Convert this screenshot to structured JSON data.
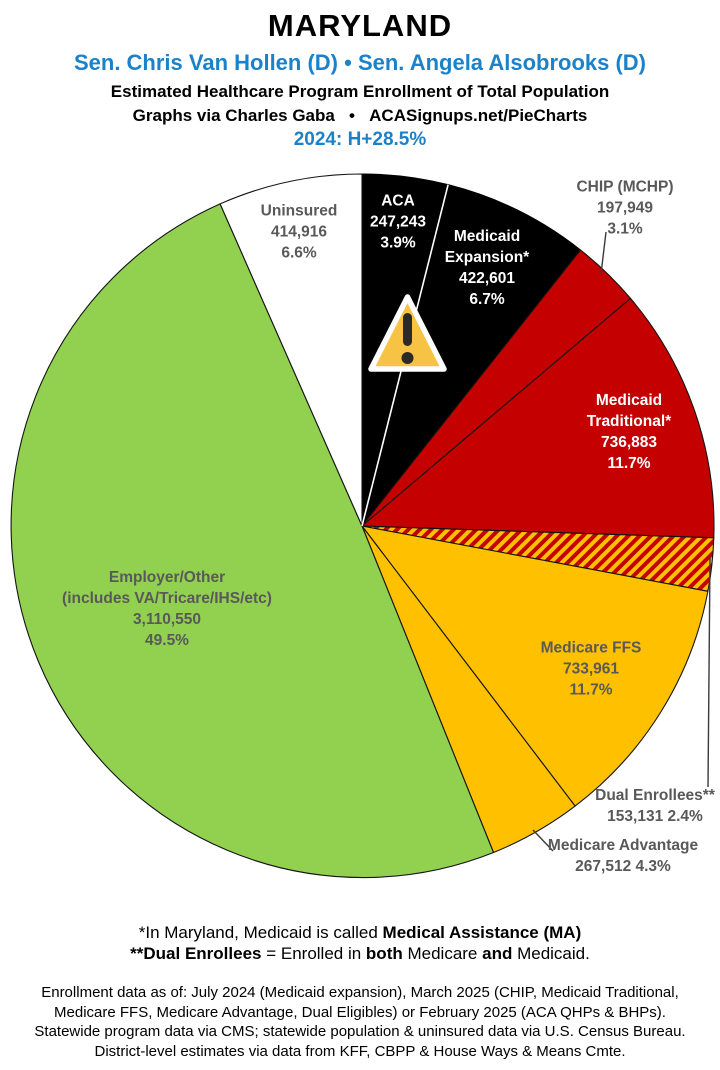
{
  "header": {
    "state": "MARYLAND",
    "senators": "Sen. Chris Van Hollen (D) • Sen. Angela Alsobrooks (D)",
    "subtitle": "Estimated Healthcare Program Enrollment of Total Population",
    "credit": "Graphs via Charles Gaba   •   ACASignups.net/PieCharts",
    "partisan_lean": "2024: H+28.5%"
  },
  "colors": {
    "accent_blue": "#1B82C9",
    "pie_red": "#C40000",
    "pie_gold": "#FFC000",
    "pie_green": "#92D050",
    "pie_black": "#000000",
    "pie_white": "#FFFFFF",
    "label_gray": "#595959",
    "warning_fill": "#F6C344"
  },
  "chart_data": {
    "type": "pie",
    "title": "Estimated Healthcare Program Enrollment of Total Population",
    "start_angle_deg": 0,
    "direction": "clockwise",
    "legend_position": "labels-on-slices",
    "slices": [
      {
        "id": "aca",
        "label_lines": [
          "ACA"
        ],
        "value": 247243,
        "value_text": "247,243",
        "pct_text": "3.9%",
        "fill": "#000000"
      },
      {
        "id": "medicaid_expansion",
        "label_lines": [
          "Medicaid",
          "Expansion*"
        ],
        "value": 422601,
        "value_text": "422,601",
        "pct_text": "6.7%",
        "fill": "#000000"
      },
      {
        "id": "chip",
        "label_lines": [
          "CHIP (MCHP)"
        ],
        "value": 197949,
        "value_text": "197,949",
        "pct_text": "3.1%",
        "fill": "#C40000"
      },
      {
        "id": "medicaid_traditional",
        "label_lines": [
          "Medicaid",
          "Traditional*"
        ],
        "value": 736883,
        "value_text": "736,883",
        "pct_text": "11.7%",
        "fill": "#C40000"
      },
      {
        "id": "dual_enrollees",
        "label_lines": [
          "Dual Enrollees**"
        ],
        "value": 153131,
        "value_text": "153,131",
        "pct_text": "2.4%",
        "fill": "#C40000",
        "pattern": "diagonal-stripes-red-gold"
      },
      {
        "id": "medicare_ffs",
        "label_lines": [
          "Medicare FFS"
        ],
        "value": 733961,
        "value_text": "733,961",
        "pct_text": "11.7%",
        "fill": "#FFC000"
      },
      {
        "id": "medicare_advantage",
        "label_lines": [
          "Medicare Advantage"
        ],
        "value": 267512,
        "value_text": "267,512",
        "pct_text": "4.3%",
        "fill": "#FFC000"
      },
      {
        "id": "employer_other",
        "label_lines": [
          "Employer/Other",
          "(includes VA/Tricare/IHS/etc)"
        ],
        "value": 3110550,
        "value_text": "3,110,550",
        "pct_text": "49.5%",
        "fill": "#92D050"
      },
      {
        "id": "uninsured",
        "label_lines": [
          "Uninsured"
        ],
        "value": 414916,
        "value_text": "414,916",
        "pct_text": "6.6%",
        "fill": "#FFFFFF"
      }
    ],
    "annotations": [
      {
        "icon": "warning-triangle",
        "placed_on": "ACA / Medicaid Expansion boundary"
      }
    ]
  },
  "footer": {
    "footnote_medicaid": [
      {
        "text": "*In Maryland, Medicaid is called ",
        "bold": false
      },
      {
        "text": "Medical Assistance (MA)",
        "bold": true
      }
    ],
    "footnote_dual": [
      {
        "text": "**Dual Enrollees",
        "bold": true
      },
      {
        "text": " = Enrolled in ",
        "bold": false
      },
      {
        "text": "both",
        "bold": true
      },
      {
        "text": " Medicare ",
        "bold": false
      },
      {
        "text": "and",
        "bold": true
      },
      {
        "text": " Medicaid.",
        "bold": false
      }
    ],
    "sources": [
      "Enrollment data as of: July 2024 (Medicaid expansion), March 2025 (CHIP, Medicaid Traditional,",
      "Medicare FFS, Medicare Advantage, Dual Eligibles) or February 2025 (ACA QHPs & BHPs).",
      "Statewide program data via CMS; statewide population & uninsured data via U.S. Census Bureau.",
      "District-level estimates via data from KFF, CBPP & House Ways & Means Cmte."
    ]
  }
}
